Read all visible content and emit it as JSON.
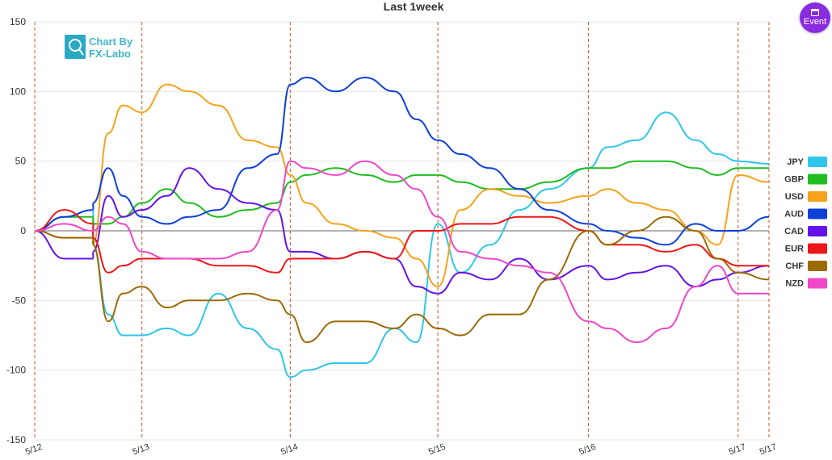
{
  "event_button": {
    "label": "Event",
    "color": "#8a2be2"
  },
  "logo": {
    "line1": "Chart By",
    "line2": "FX-Labo"
  },
  "chart_data": {
    "type": "line",
    "title": "Last 1week",
    "ylim": [
      -150,
      150
    ],
    "yticks": [
      150,
      100,
      50,
      0,
      -50,
      -100,
      -150
    ],
    "xlim": [
      0,
      1
    ],
    "date_ticks": [
      {
        "label": "5/12",
        "x": 0.0
      },
      {
        "label": "5/13",
        "x": 0.146
      },
      {
        "label": "5/14",
        "x": 0.348
      },
      {
        "label": "5/15",
        "x": 0.549
      },
      {
        "label": "5/16",
        "x": 0.754
      },
      {
        "label": "5/17",
        "x": 0.958
      },
      {
        "label": "5/17",
        "x": 1.0
      }
    ],
    "grid": true,
    "legend": "right",
    "x": [
      0,
      0.04,
      0.08,
      0.079,
      0.1,
      0.12,
      0.146,
      0.18,
      0.21,
      0.25,
      0.29,
      0.33,
      0.348,
      0.37,
      0.41,
      0.45,
      0.49,
      0.52,
      0.549,
      0.58,
      0.62,
      0.66,
      0.7,
      0.754,
      0.78,
      0.82,
      0.86,
      0.9,
      0.93,
      0.958,
      1.0
    ],
    "series": [
      {
        "name": "JPY",
        "color": "#2ec6ea",
        "values": [
          0,
          10,
          15,
          -10,
          -60,
          -75,
          -75,
          -70,
          -75,
          -45,
          -70,
          -85,
          -105,
          -100,
          -95,
          -95,
          -70,
          -80,
          5,
          -30,
          -10,
          15,
          30,
          45,
          60,
          65,
          85,
          65,
          55,
          50,
          48
        ]
      },
      {
        "name": "GBP",
        "color": "#1fbd1f",
        "values": [
          0,
          10,
          10,
          5,
          5,
          10,
          20,
          30,
          20,
          10,
          15,
          20,
          35,
          40,
          45,
          40,
          35,
          40,
          40,
          35,
          30,
          30,
          35,
          45,
          45,
          50,
          50,
          45,
          40,
          45,
          45
        ]
      },
      {
        "name": "USD",
        "color": "#f6a21c",
        "values": [
          0,
          -5,
          -5,
          -10,
          70,
          90,
          85,
          105,
          100,
          90,
          65,
          60,
          40,
          20,
          5,
          0,
          -5,
          -20,
          -40,
          15,
          30,
          25,
          20,
          25,
          30,
          20,
          15,
          0,
          -10,
          40,
          35
        ]
      },
      {
        "name": "AUD",
        "color": "#0d3fd9",
        "values": [
          0,
          10,
          15,
          20,
          45,
          25,
          10,
          5,
          10,
          15,
          45,
          55,
          105,
          110,
          100,
          110,
          100,
          80,
          65,
          55,
          45,
          30,
          15,
          5,
          0,
          -5,
          -10,
          5,
          0,
          0,
          10
        ]
      },
      {
        "name": "CAD",
        "color": "#6412e8",
        "values": [
          0,
          -20,
          -20,
          -15,
          25,
          10,
          15,
          25,
          45,
          30,
          20,
          15,
          -15,
          -15,
          -20,
          -15,
          -20,
          -40,
          -45,
          -30,
          -35,
          -20,
          -35,
          -25,
          -35,
          -30,
          -25,
          -40,
          -35,
          -30,
          -25
        ]
      },
      {
        "name": "EUR",
        "color": "#ed1717",
        "values": [
          0,
          15,
          5,
          -5,
          -30,
          -25,
          -20,
          -20,
          -20,
          -25,
          -25,
          -30,
          -20,
          -20,
          -20,
          -15,
          -20,
          0,
          0,
          5,
          5,
          10,
          10,
          0,
          -10,
          -10,
          -15,
          -10,
          -20,
          -25,
          -25
        ]
      },
      {
        "name": "CHF",
        "color": "#9c6a05",
        "values": [
          0,
          -5,
          -5,
          -10,
          -65,
          -45,
          -40,
          -55,
          -50,
          -50,
          -45,
          -50,
          -60,
          -80,
          -65,
          -65,
          -70,
          -60,
          -70,
          -75,
          -60,
          -60,
          -35,
          0,
          -10,
          0,
          10,
          0,
          -20,
          -30,
          -35
        ]
      },
      {
        "name": "NZD",
        "color": "#f046c8",
        "values": [
          0,
          5,
          0,
          0,
          10,
          5,
          -15,
          -20,
          -20,
          -20,
          -15,
          15,
          50,
          45,
          40,
          50,
          40,
          30,
          10,
          -15,
          -20,
          -25,
          -30,
          -65,
          -70,
          -80,
          -70,
          -40,
          -25,
          -45,
          -45
        ]
      }
    ]
  }
}
